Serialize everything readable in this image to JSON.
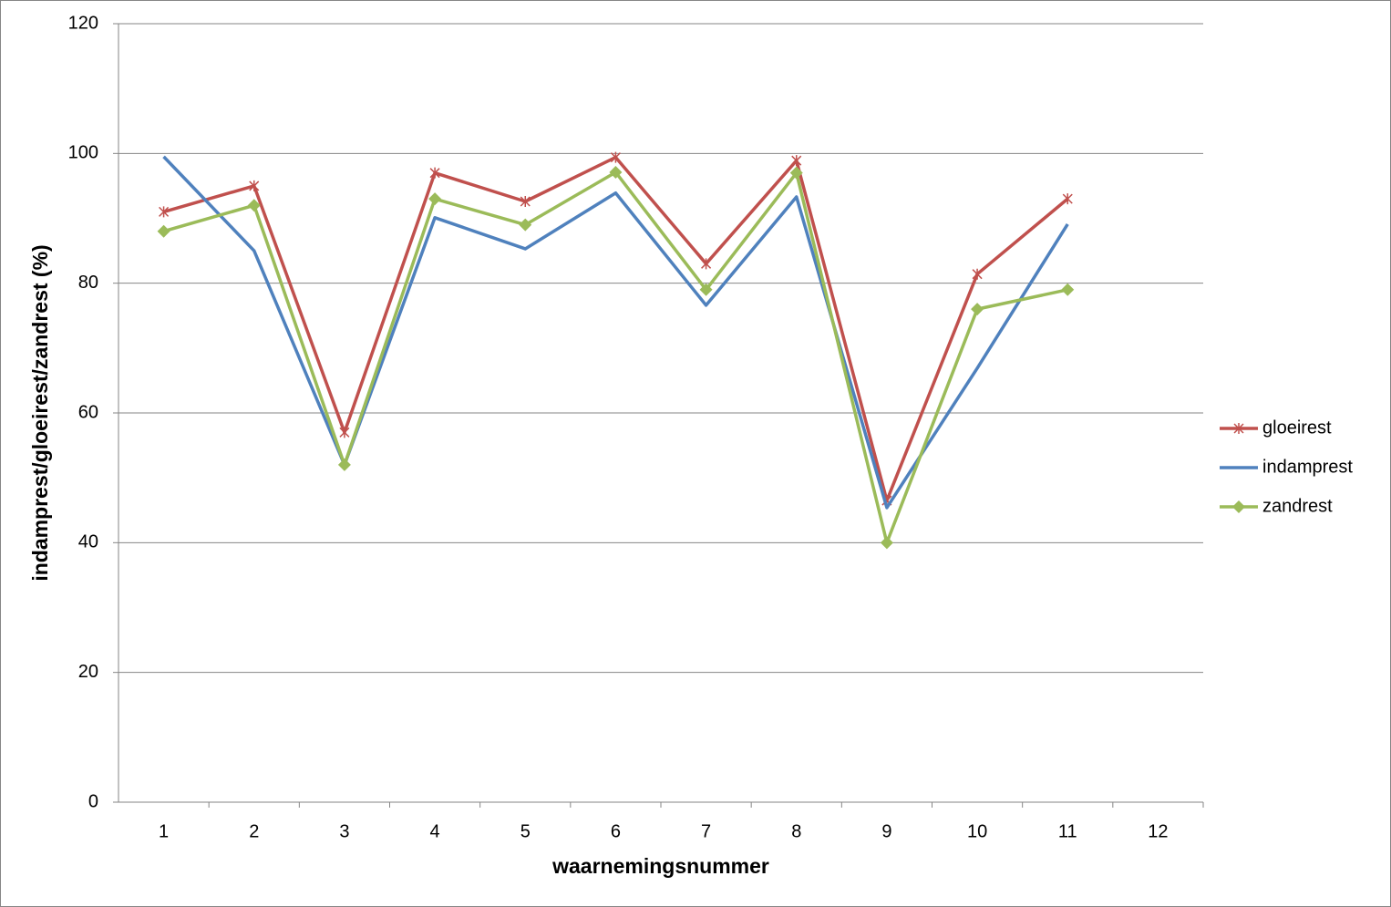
{
  "chart_data": {
    "type": "line",
    "x_label": "waarnemingsnummer",
    "y_label": "indamprest/gloeirest/zandrest (%)",
    "categories": [
      1,
      2,
      3,
      4,
      5,
      6,
      7,
      8,
      9,
      10,
      11,
      12
    ],
    "series": [
      {
        "name": "gloeirest",
        "color": "#c0504d",
        "marker": "star",
        "values": [
          91,
          95,
          57,
          97,
          92.6,
          99.4,
          83,
          98.9,
          46.5,
          81.4,
          93,
          null
        ]
      },
      {
        "name": "indamprest",
        "color": "#4f81bd",
        "marker": "none",
        "values": [
          99.5,
          85,
          52,
          90.1,
          85.3,
          93.9,
          76.6,
          93.3,
          45.4,
          66.9,
          89.1,
          null
        ]
      },
      {
        "name": "zandrest",
        "color": "#9bbb59",
        "marker": "diamond",
        "values": [
          88,
          92,
          52,
          93,
          89,
          97.1,
          79,
          97,
          40,
          76,
          79,
          null
        ]
      }
    ],
    "ylim": [
      0,
      120
    ],
    "yticks": [
      0,
      20,
      40,
      60,
      80,
      100,
      120
    ],
    "grid": true,
    "legend": "right"
  }
}
